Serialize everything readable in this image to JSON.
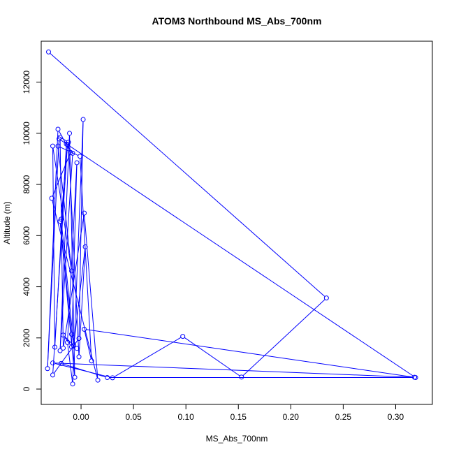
{
  "chart_data": {
    "type": "line",
    "title": "ATOM3 Northbound MS_Abs_700nm",
    "xlabel": "MS_Abs_700nm",
    "ylabel": "Altitude (m)",
    "xlim": [
      -0.038,
      0.335
    ],
    "ylim": [
      -600,
      13600
    ],
    "x_ticks": [
      {
        "value": 0.0,
        "label": "0.00"
      },
      {
        "value": 0.05,
        "label": "0.05"
      },
      {
        "value": 0.1,
        "label": "0.10"
      },
      {
        "value": 0.15,
        "label": "0.15"
      },
      {
        "value": 0.2,
        "label": "0.20"
      },
      {
        "value": 0.25,
        "label": "0.25"
      },
      {
        "value": 0.3,
        "label": "0.30"
      }
    ],
    "y_ticks": [
      {
        "value": 0,
        "label": "0"
      },
      {
        "value": 2000,
        "label": "2000"
      },
      {
        "value": 4000,
        "label": "4000"
      },
      {
        "value": 6000,
        "label": "6000"
      },
      {
        "value": 8000,
        "label": "8000"
      },
      {
        "value": 10000,
        "label": "10000"
      },
      {
        "value": 12000,
        "label": "12000"
      }
    ],
    "color": "#0000ff",
    "series": [
      {
        "markers": "open-circle",
        "points": [
          {
            "x": -0.031,
            "y": 13180
          },
          {
            "x": 0.234,
            "y": 3560
          },
          {
            "x": 0.153,
            "y": 470
          },
          {
            "x": 0.097,
            "y": 2060
          },
          {
            "x": 0.03,
            "y": 440
          },
          {
            "x": -0.027,
            "y": 1020
          },
          {
            "x": 0.318,
            "y": 460
          },
          {
            "x": 0.003,
            "y": 2340
          },
          {
            "x": 0.01,
            "y": 1100
          },
          {
            "x": -0.001,
            "y": 9100
          },
          {
            "x": -0.022,
            "y": 9500
          },
          {
            "x": -0.009,
            "y": 4620
          },
          {
            "x": -0.027,
            "y": 9500
          },
          {
            "x": -0.025,
            "y": 1640
          },
          {
            "x": -0.014,
            "y": 9580
          },
          {
            "x": -0.008,
            "y": 9220
          },
          {
            "x": -0.02,
            "y": 1500
          },
          {
            "x": -0.011,
            "y": 10000
          },
          {
            "x": -0.006,
            "y": 460
          },
          {
            "x": -0.02,
            "y": 6560
          },
          {
            "x": -0.009,
            "y": 2140
          },
          {
            "x": -0.004,
            "y": 1590
          },
          {
            "x": -0.017,
            "y": 2110
          },
          {
            "x": -0.009,
            "y": 1650
          },
          {
            "x": -0.004,
            "y": 8850
          },
          {
            "x": -0.013,
            "y": 1820
          },
          {
            "x": -0.008,
            "y": 200
          },
          {
            "x": 0.002,
            "y": 10540
          },
          {
            "x": -0.002,
            "y": 1980
          },
          {
            "x": -0.027,
            "y": 550
          },
          {
            "x": -0.013,
            "y": 9550
          },
          {
            "x": -0.019,
            "y": 6640
          },
          {
            "x": -0.007,
            "y": 1700
          },
          {
            "x": 0.004,
            "y": 5560
          },
          {
            "x": -0.002,
            "y": 1260
          },
          {
            "x": -0.012,
            "y": 9650
          },
          {
            "x": -0.02,
            "y": 9850
          },
          {
            "x": -0.017,
            "y": 1600
          },
          {
            "x": 0.003,
            "y": 6880
          },
          {
            "x": 0.016,
            "y": 350
          },
          {
            "x": -0.028,
            "y": 7460
          },
          {
            "x": -0.01,
            "y": 9250
          },
          {
            "x": -0.022,
            "y": 10160
          },
          {
            "x": -0.032,
            "y": 800
          },
          {
            "x": -0.021,
            "y": 9780
          },
          {
            "x": 0.319,
            "y": 450
          },
          {
            "x": 0.025,
            "y": 450
          },
          {
            "x": -0.019,
            "y": 1000
          }
        ]
      }
    ]
  }
}
